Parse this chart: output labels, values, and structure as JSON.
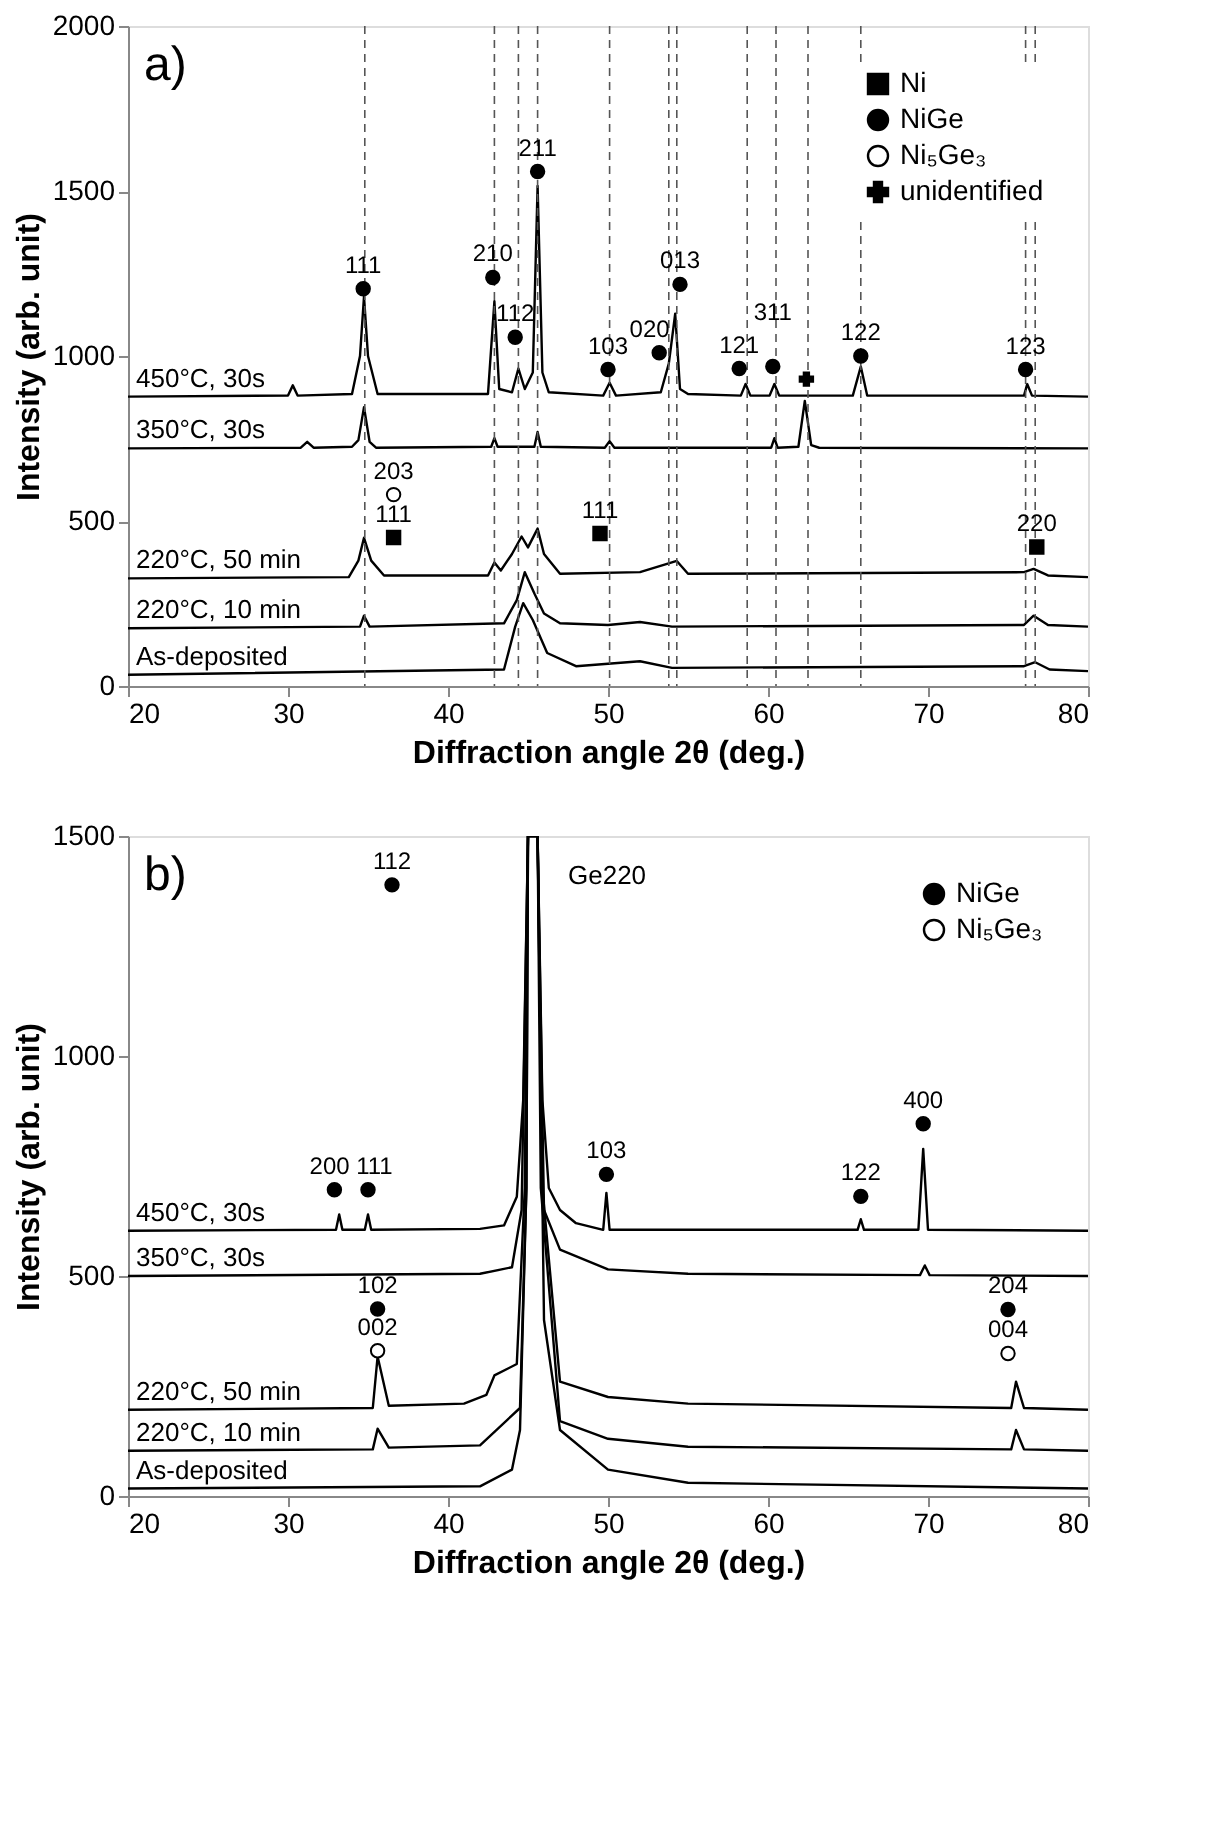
{
  "chart_data": [
    {
      "type": "line",
      "xlabel": "Diffraction angle 2θ (deg.)",
      "ylabel": "Intensity (arb. unit)",
      "xlim": [
        20,
        80
      ],
      "xticks": [
        20,
        30,
        40,
        50,
        60,
        70,
        80
      ],
      "ylim": [
        0,
        2000
      ],
      "yticks": [
        0,
        500,
        1000,
        1500,
        2000
      ],
      "grid": false,
      "legend": "top right",
      "line_style": "solid",
      "series": [
        {
          "color": "#000000",
          "x": [
            20,
            30,
            30.3,
            30.6,
            34.0,
            34.5,
            34.75,
            35.0,
            35.6,
            42.5,
            42.9,
            43.2,
            44.0,
            44.4,
            44.8,
            45.3,
            45.6,
            45.9,
            46.3,
            49.7,
            50.1,
            50.5,
            53.3,
            53.8,
            54.2,
            54.5,
            55,
            58.3,
            58.6,
            58.9,
            60.1,
            60.4,
            60.7,
            65.3,
            65.8,
            66.2,
            76.0,
            76.2,
            76.5,
            80
          ],
          "values": [
            877,
            880,
            911,
            880,
            885,
            1000,
            1180,
            1000,
            885,
            885,
            1166,
            900,
            890,
            962,
            900,
            950,
            1515,
            950,
            890,
            880,
            919,
            880,
            890,
            977,
            1128,
            900,
            885,
            880,
            915,
            880,
            880,
            915,
            880,
            880,
            968,
            880,
            880,
            915,
            880,
            877
          ]
        },
        {
          "color": "#000000",
          "x": [
            20,
            30.8,
            31.2,
            31.6,
            34.0,
            34.4,
            34.75,
            35.1,
            35.5,
            42.7,
            42.9,
            43.1,
            45.4,
            45.6,
            45.8,
            49.8,
            50.1,
            50.4,
            60.2,
            60.4,
            60.6,
            61.9,
            62.3,
            62.7,
            63.2,
            80
          ],
          "values": [
            720,
            722,
            740,
            722,
            725,
            745,
            845,
            740,
            722,
            725,
            751,
            725,
            725,
            770,
            725,
            722,
            742,
            722,
            722,
            751,
            722,
            725,
            864,
            730,
            722,
            720
          ]
        },
        {
          "color": "#000000",
          "x": [
            20,
            33.8,
            34.4,
            34.75,
            35.2,
            36,
            42.5,
            42.9,
            43.3,
            44.0,
            44.6,
            45.0,
            45.6,
            46.0,
            47,
            52,
            54.3,
            55,
            76,
            76.6,
            77.5,
            80
          ],
          "values": [
            326,
            330,
            380,
            449,
            380,
            335,
            335,
            374,
            350,
            400,
            453,
            420,
            477,
            400,
            340,
            345,
            379,
            340,
            345,
            355,
            335,
            330
          ]
        },
        {
          "color": "#000000",
          "x": [
            20,
            34.5,
            34.75,
            35.1,
            43.5,
            44.3,
            44.8,
            45.4,
            46.0,
            47,
            50,
            52,
            54,
            76,
            76.6,
            77.5,
            80
          ],
          "values": [
            175,
            180,
            213,
            180,
            190,
            260,
            345,
            280,
            220,
            190,
            185,
            194,
            180,
            185,
            213,
            185,
            180
          ]
        },
        {
          "color": "#000000",
          "x": [
            20,
            43.5,
            44.2,
            44.7,
            45.3,
            46.2,
            48,
            52,
            54,
            76,
            76.7,
            77.6,
            80
          ],
          "values": [
            34,
            50,
            180,
            251,
            200,
            100,
            60,
            75,
            55,
            60,
            72,
            50,
            45
          ]
        },
        {
          "type": "scatter",
          "name": "Ni",
          "marker": "square",
          "color": "#000000",
          "x": [
            49.5,
            76.8,
            36.6
          ],
          "values": [
            462,
            421,
            450
          ]
        },
        {
          "type": "scatter",
          "name": "NiGe",
          "marker": "circle",
          "color": "#000000",
          "x": [
            34.7,
            42.8,
            44.2,
            45.6,
            50.0,
            53.2,
            54.5,
            58.2,
            60.3,
            65.8,
            76.1
          ],
          "values": [
            1204,
            1238,
            1057,
            1559,
            959,
            1010,
            1217,
            962,
            968,
            1000,
            959
          ]
        },
        {
          "type": "scatter",
          "name": "Ni₅Ge₃",
          "marker": "circle",
          "color": "#ffffff",
          "x": [
            36.6
          ],
          "values": [
            580
          ]
        },
        {
          "type": "scatter",
          "name": "unidentified",
          "marker": "cross",
          "color": "#000000",
          "x": [
            62.4
          ],
          "values": [
            930
          ]
        }
      ],
      "ref_lines": [
        {
          "axis": "x",
          "value": 34.8,
          "line_style": "dashed"
        },
        {
          "axis": "x",
          "value": 42.9,
          "line_style": "dashed"
        },
        {
          "axis": "x",
          "value": 44.4,
          "line_style": "dashed"
        },
        {
          "axis": "x",
          "value": 45.6,
          "line_style": "dashed"
        },
        {
          "axis": "x",
          "value": 50.1,
          "line_style": "dashed"
        },
        {
          "axis": "x",
          "value": 53.8,
          "line_style": "dashed"
        },
        {
          "axis": "x",
          "value": 54.3,
          "line_style": "dashed"
        },
        {
          "axis": "x",
          "value": 58.7,
          "line_style": "dashed"
        },
        {
          "axis": "x",
          "value": 60.5,
          "line_style": "dashed"
        },
        {
          "axis": "x",
          "value": 62.5,
          "line_style": "dashed"
        },
        {
          "axis": "x",
          "value": 65.8,
          "line_style": "dashed"
        },
        {
          "axis": "x",
          "value": 76.1,
          "line_style": "dashed"
        },
        {
          "axis": "x",
          "value": 76.7,
          "line_style": "dashed"
        }
      ],
      "annotations": [
        "a)",
        {
          "text": "450°C, 30s",
          "x": 20.5,
          "y": 877
        },
        {
          "text": "350°C, 30s",
          "x": 20.5,
          "y": 720
        },
        {
          "text": "220°C, 50 min",
          "x": 20.5,
          "y": 326
        },
        {
          "text": "220°C, 10 min",
          "x": 20.5,
          "y": 175
        },
        {
          "text": "As-deposited",
          "x": 20.5,
          "y": 34
        },
        {
          "text": "111",
          "x": 34.7,
          "y": 1204
        },
        {
          "text": "210",
          "x": 42.8,
          "y": 1238
        },
        {
          "text": "112",
          "x": 44.2,
          "y": 1057
        },
        {
          "text": "211",
          "x": 45.6,
          "y": 1559
        },
        {
          "text": "103",
          "x": 50.0,
          "y": 959
        },
        {
          "text": "020",
          "x": 52.6,
          "y": 1010
        },
        {
          "text": "013",
          "x": 54.5,
          "y": 1217
        },
        {
          "text": "121",
          "x": 58.2,
          "y": 962
        },
        {
          "text": "311",
          "x": 60.3,
          "y": 1060
        },
        {
          "text": "122",
          "x": 65.8,
          "y": 1000
        },
        {
          "text": "123",
          "x": 76.1,
          "y": 959
        },
        {
          "text": "111",
          "x": 49.5,
          "y": 462
        },
        {
          "text": "220",
          "x": 76.8,
          "y": 421
        },
        {
          "text": "203",
          "x": 36.6,
          "y": 580
        },
        {
          "text": "111",
          "x": 36.6,
          "y": 450
        }
      ]
    },
    {
      "type": "line",
      "xlabel": "Diffraction angle 2θ (deg.)",
      "ylabel": "Intensity (arb. unit)",
      "xlim": [
        20,
        80
      ],
      "xticks": [
        20,
        30,
        40,
        50,
        60,
        70,
        80
      ],
      "ylim": [
        0,
        1500
      ],
      "yticks": [
        0,
        500,
        1000,
        1500
      ],
      "grid": false,
      "legend": "top right",
      "line_style": "solid",
      "series": [
        {
          "color": "#000000",
          "x": [
            20,
            33.0,
            33.2,
            33.4,
            34.8,
            35.0,
            35.2,
            42,
            43.5,
            44.3,
            44.7,
            45.0,
            45.6,
            45.9,
            46.3,
            47,
            48,
            49.7,
            49.9,
            50.1,
            65.6,
            65.8,
            66.0,
            69.4,
            69.7,
            70.0,
            80
          ],
          "values": [
            603,
            605,
            640,
            605,
            605,
            640,
            605,
            607,
            615,
            680,
            900,
            1500,
            1500,
            900,
            700,
            650,
            620,
            605,
            689,
            605,
            605,
            629,
            605,
            605,
            789,
            605,
            603
          ]
        },
        {
          "color": "#000000",
          "x": [
            20,
            42,
            44,
            44.6,
            45.0,
            45.6,
            46,
            47,
            50,
            55,
            69.5,
            69.8,
            70.1,
            80
          ],
          "values": [
            500,
            505,
            520,
            650,
            1500,
            1500,
            650,
            560,
            515,
            505,
            502,
            524,
            502,
            500
          ]
        },
        {
          "color": "#000000",
          "x": [
            20,
            35.3,
            35.6,
            36.3,
            41,
            42.4,
            42.9,
            44.3,
            44.8,
            45.0,
            45.6,
            45.9,
            47,
            50,
            55,
            75.2,
            75.5,
            76.0,
            80
          ],
          "values": [
            196,
            200,
            317,
            205,
            210,
            230,
            274,
            300,
            700,
            1500,
            1500,
            700,
            260,
            225,
            210,
            200,
            260,
            200,
            196
          ]
        },
        {
          "color": "#000000",
          "x": [
            20,
            35.3,
            35.6,
            36.3,
            42,
            44.5,
            44.9,
            45.0,
            45.6,
            45.8,
            47,
            50,
            55,
            75.2,
            75.5,
            76.0,
            80
          ],
          "values": [
            103,
            106,
            153,
            110,
            115,
            200,
            700,
            1500,
            1500,
            700,
            170,
            130,
            112,
            106,
            150,
            106,
            103
          ]
        },
        {
          "color": "#000000",
          "x": [
            20,
            42,
            44,
            44.5,
            44.9,
            45.0,
            45.6,
            46,
            47,
            50,
            55,
            80
          ],
          "values": [
            17,
            22,
            60,
            150,
            700,
            1500,
            1500,
            400,
            150,
            60,
            30,
            17
          ]
        },
        {
          "type": "scatter",
          "name": "NiGe",
          "marker": "circle",
          "color": "#000000",
          "x": [
            32.9,
            35.0,
            36.5,
            35.6,
            49.9,
            65.8,
            69.7,
            75.0
          ],
          "values": [
            696,
            696,
            1389,
            425,
            731,
            681,
            846,
            424
          ]
        },
        {
          "type": "scatter",
          "name": "Ni₅Ge₃",
          "marker": "circle",
          "color": "#ffffff",
          "x": [
            35.6,
            75.0
          ],
          "values": [
            330,
            324
          ]
        }
      ],
      "annotations": [
        "b)",
        {
          "text": "450°C, 30s",
          "x": 20.5,
          "y": 603
        },
        {
          "text": "350°C, 30s",
          "x": 20.5,
          "y": 500
        },
        {
          "text": "220°C, 50 min",
          "x": 20.5,
          "y": 196
        },
        {
          "text": "220°C, 10 min",
          "x": 20.5,
          "y": 103
        },
        {
          "text": "As-deposited",
          "x": 20.5,
          "y": 17
        },
        {
          "text": "200",
          "x": 32.6,
          "y": 696
        },
        {
          "text": "111",
          "x": 35.4,
          "y": 696
        },
        {
          "text": "112",
          "x": 36.5,
          "y": 1389
        },
        {
          "text": "102",
          "x": 35.6,
          "y": 425
        },
        {
          "text": "002",
          "x": 35.6,
          "y": 330
        },
        {
          "text": "103",
          "x": 49.9,
          "y": 731
        },
        {
          "text": "122",
          "x": 65.8,
          "y": 681
        },
        {
          "text": "400",
          "x": 69.7,
          "y": 846
        },
        {
          "text": "204",
          "x": 75.0,
          "y": 424
        },
        {
          "text": "004",
          "x": 75.0,
          "y": 324
        },
        "Ge220"
      ]
    }
  ]
}
